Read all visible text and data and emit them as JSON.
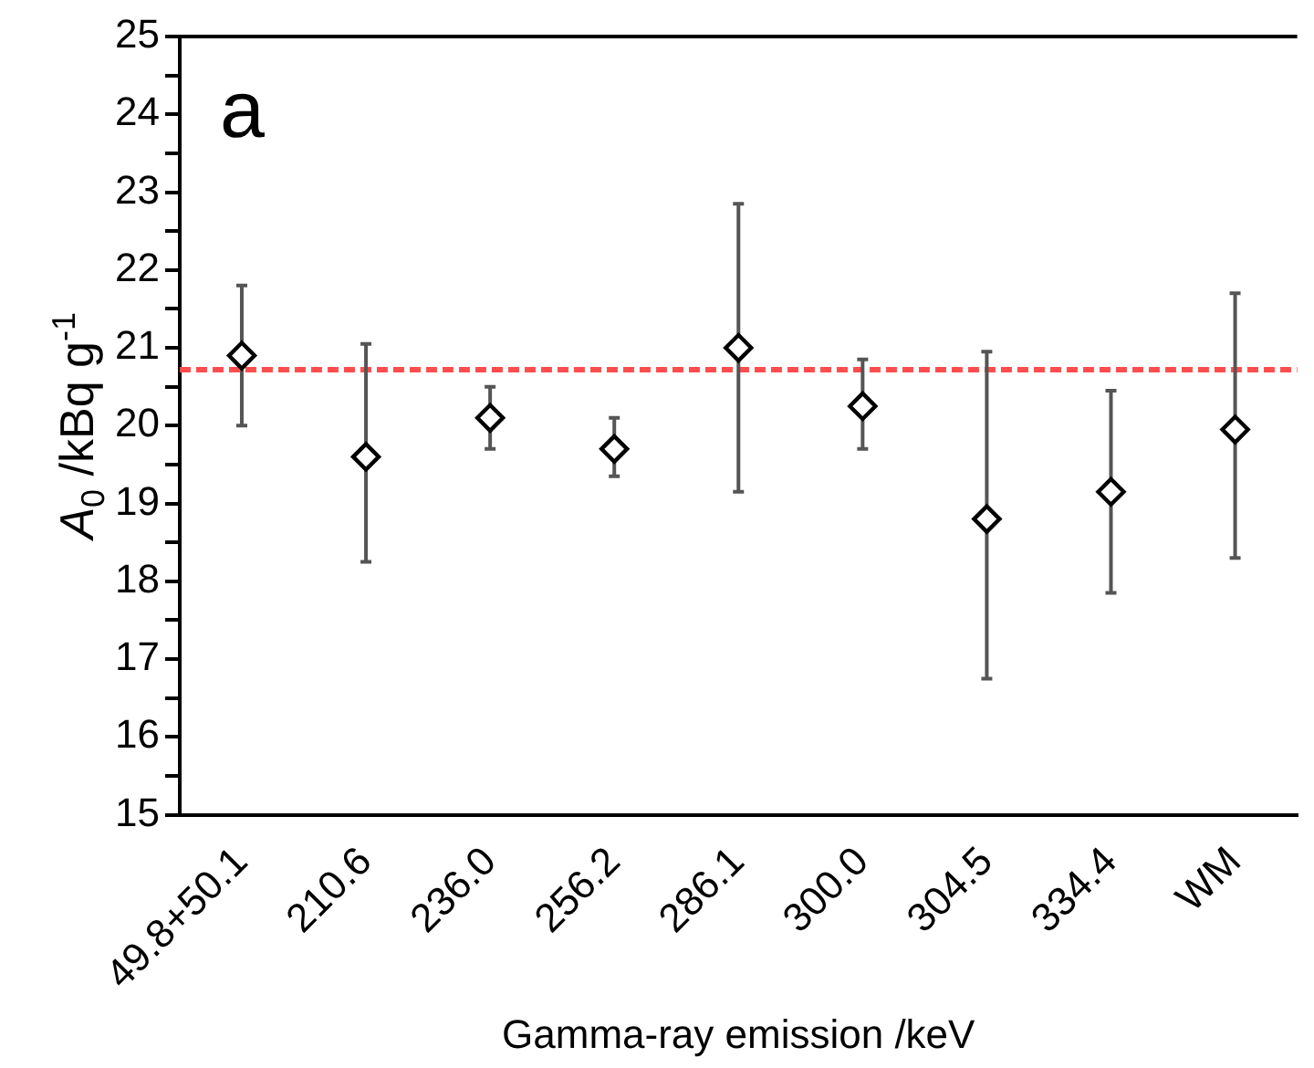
{
  "chart_data": {
    "type": "scatter",
    "xlabel": "Gamma-ray emission /keV",
    "ylabel": "A$_{0}$ /kBq g$^{-1}$",
    "categories": [
      "49.8+50.1",
      "210.6",
      "236.0",
      "256.2",
      "286.1",
      "300.0",
      "304.5",
      "334.4",
      "WM"
    ],
    "series": [
      {
        "color": "#000000",
        "marker": "diamond",
        "values": [
          20.9,
          19.6,
          20.1,
          19.7,
          21.0,
          20.25,
          18.8,
          19.15,
          19.95
        ],
        "errors": [
          [
            20.0,
            21.8
          ],
          [
            18.25,
            21.05
          ],
          [
            19.7,
            20.5
          ],
          [
            19.35,
            20.1
          ],
          [
            19.15,
            22.85
          ],
          [
            19.7,
            20.85
          ],
          [
            16.75,
            20.95
          ],
          [
            17.85,
            20.45
          ],
          [
            18.3,
            21.7
          ]
        ]
      }
    ],
    "ylim": [
      15,
      25
    ],
    "yticks": [
      15,
      {
        "value": 15.5,
        "label": null
      },
      16,
      {
        "value": 16.5,
        "label": null
      },
      17,
      {
        "value": 17.5,
        "label": null
      },
      18,
      {
        "value": 18.5,
        "label": null
      },
      19,
      {
        "value": 19.5,
        "label": null
      },
      20,
      {
        "value": 20.5,
        "label": null
      },
      21,
      {
        "value": 21.5,
        "label": null
      },
      22,
      {
        "value": 22.5,
        "label": null
      },
      23,
      {
        "value": 23.5,
        "label": null
      },
      24,
      {
        "value": 24.5,
        "label": null
      },
      25
    ],
    "ref_lines": [
      {
        "axis": "y",
        "value": 20.72,
        "color": "#ff4d4d",
        "line_style": "dashed"
      }
    ],
    "annotations": [
      "a"
    ],
    "grid": false,
    "legend": false
  }
}
